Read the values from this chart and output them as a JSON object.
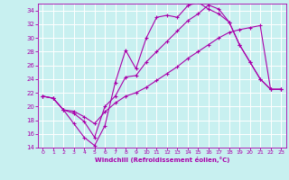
{
  "xlabel": "Windchill (Refroidissement éolien,°C)",
  "bg_color": "#c8f0f0",
  "line_color": "#aa00aa",
  "grid_color": "#ffffff",
  "xlim": [
    -0.5,
    23.5
  ],
  "ylim": [
    14,
    35
  ],
  "yticks": [
    14,
    16,
    18,
    20,
    22,
    24,
    26,
    28,
    30,
    32,
    34
  ],
  "xticks": [
    0,
    1,
    2,
    3,
    4,
    5,
    6,
    7,
    8,
    9,
    10,
    11,
    12,
    13,
    14,
    15,
    16,
    17,
    18,
    19,
    20,
    21,
    22,
    23
  ],
  "line1_x": [
    0,
    1,
    2,
    3,
    4,
    5,
    6,
    7,
    8,
    9,
    10,
    11,
    12,
    13,
    14,
    15,
    16,
    17,
    18,
    19,
    20,
    21,
    22,
    23
  ],
  "line1_y": [
    21.5,
    21.2,
    19.5,
    17.5,
    15.5,
    14.3,
    17.2,
    23.5,
    28.2,
    25.5,
    30.0,
    33.0,
    33.3,
    33.0,
    34.7,
    35.2,
    34.2,
    33.5,
    32.3,
    29.0,
    26.5,
    24.0,
    22.5,
    22.5
  ],
  "line2_x": [
    0,
    1,
    2,
    3,
    4,
    5,
    6,
    7,
    8,
    9,
    10,
    11,
    12,
    13,
    14,
    15,
    16,
    17,
    18,
    19,
    20,
    21,
    22,
    23
  ],
  "line2_y": [
    21.5,
    21.2,
    19.5,
    19.0,
    17.8,
    15.5,
    20.0,
    21.5,
    24.3,
    24.5,
    26.5,
    28.0,
    29.5,
    31.0,
    32.5,
    33.5,
    34.8,
    34.2,
    32.3,
    29.0,
    26.5,
    24.0,
    22.5,
    22.5
  ],
  "line3_x": [
    0,
    1,
    2,
    3,
    4,
    5,
    6,
    7,
    8,
    9,
    10,
    11,
    12,
    13,
    14,
    15,
    16,
    17,
    18,
    19,
    20,
    21,
    22,
    23
  ],
  "line3_y": [
    21.5,
    21.2,
    19.5,
    19.3,
    18.5,
    17.5,
    19.2,
    20.5,
    21.5,
    22.0,
    22.8,
    23.8,
    24.8,
    25.8,
    27.0,
    28.0,
    29.0,
    30.0,
    30.8,
    31.2,
    31.5,
    31.8,
    22.5,
    22.5
  ]
}
